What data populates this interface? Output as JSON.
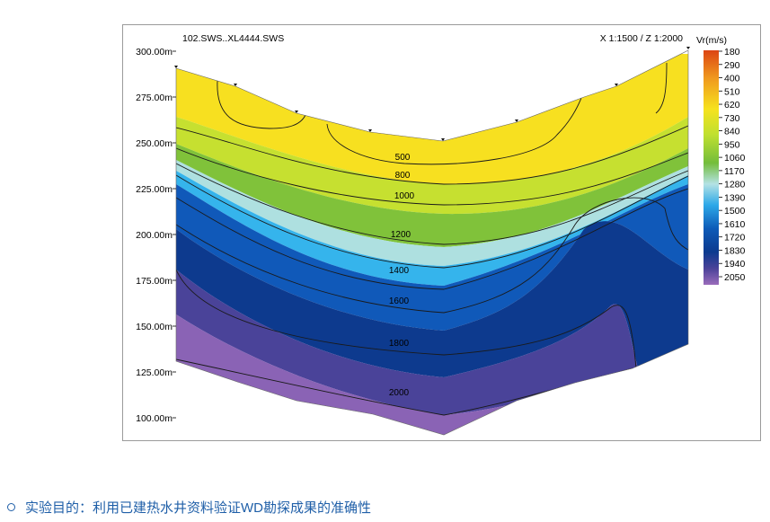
{
  "chart_data": {
    "type": "heatmap",
    "title_left": "102.SWS..XL4444.SWS",
    "title_right": "X 1:1500 / Z 1:2000",
    "y_ticks": [
      "300.00m",
      "275.00m",
      "250.00m",
      "225.00m",
      "200.00m",
      "175.00m",
      "150.00m",
      "125.00m",
      "100.00m"
    ],
    "y_values": [
      300,
      275,
      250,
      225,
      200,
      175,
      150,
      125,
      100
    ],
    "ylim": [
      100,
      300
    ],
    "legend_title": "Vr(m/s)",
    "legend_labels": [
      "180",
      "290",
      "400",
      "510",
      "620",
      "730",
      "840",
      "950",
      "1060",
      "1170",
      "1280",
      "1390",
      "1500",
      "1610",
      "1720",
      "1830",
      "1940",
      "2050"
    ],
    "legend_colors": [
      "#dc4513",
      "#e96d18",
      "#f09a1e",
      "#f4c21c",
      "#f6e21e",
      "#e5ea26",
      "#bfe02f",
      "#93ce36",
      "#74bd3b",
      "#88ca9b",
      "#b4e2e4",
      "#76cbef",
      "#2da8e8",
      "#0d5bb8",
      "#0c3a8f",
      "#3c3a96",
      "#6a4fa8",
      "#9a6cbb"
    ],
    "contour_labels": [
      "500",
      "800",
      "1000",
      "1200",
      "1400",
      "1600",
      "1800",
      "2000"
    ]
  },
  "footer": {
    "caption": "实验目的：利用已建热水井资料验证WD勘探成果的准确性"
  }
}
